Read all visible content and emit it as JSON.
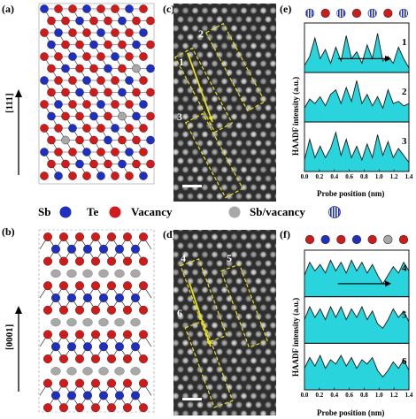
{
  "panels": {
    "a": {
      "label": "(a)",
      "direction": "[111]"
    },
    "b": {
      "label": "(b)",
      "direction": "[0001]"
    },
    "c": {
      "label": "(c)",
      "lines": [
        "1",
        "2",
        "3"
      ]
    },
    "d": {
      "label": "(d)",
      "lines": [
        "4",
        "5",
        "6"
      ]
    },
    "e": {
      "label": "(e)"
    },
    "f": {
      "label": "(f)"
    }
  },
  "legend": {
    "sb": "Sb",
    "te": "Te",
    "vacancy": "Vacancy",
    "sb_vacancy": "Sb/vacancy"
  },
  "colors": {
    "sb": "#1f2fbf",
    "te": "#d11a1a",
    "vacancy": "#a8a8a8",
    "profile_fill": "#2ad4dc",
    "dashed_box": "#e8e020",
    "arrow": "#e8e020"
  },
  "chart_data": [
    {
      "type": "area",
      "panel": "e",
      "ylabel": "HAADF intensity (a.u.)",
      "xlabel": "Probe position (nm)",
      "xlim": [
        0.0,
        1.4
      ],
      "x_ticks": [
        "0.0",
        "0.2",
        "0.4",
        "0.6",
        "0.8",
        "1.0",
        "1.2",
        "1.4"
      ],
      "atom_markers": [
        "sb_vacancy",
        "te",
        "sb_vacancy",
        "te",
        "sb_vacancy",
        "te",
        "sb_vacancy"
      ],
      "series": [
        {
          "name": "1",
          "x": [
            0.0,
            0.07,
            0.14,
            0.21,
            0.28,
            0.35,
            0.42,
            0.49,
            0.56,
            0.63,
            0.7,
            0.77,
            0.84,
            0.91,
            0.98,
            1.05,
            1.12,
            1.19,
            1.26,
            1.33,
            1.4
          ],
          "values": [
            0.15,
            0.35,
            0.75,
            0.3,
            0.5,
            0.2,
            0.55,
            0.25,
            0.8,
            0.3,
            0.45,
            0.2,
            0.6,
            0.3,
            0.85,
            0.25,
            0.35,
            0.2,
            0.55,
            0.3,
            0.1
          ]
        },
        {
          "name": "2",
          "x": [
            0.0,
            0.07,
            0.14,
            0.21,
            0.28,
            0.35,
            0.42,
            0.49,
            0.56,
            0.63,
            0.7,
            0.77,
            0.84,
            0.91,
            0.98,
            1.05,
            1.12,
            1.19,
            1.26,
            1.33,
            1.4
          ],
          "values": [
            0.3,
            0.5,
            0.4,
            0.55,
            0.35,
            0.6,
            0.7,
            0.4,
            0.75,
            0.45,
            0.9,
            0.4,
            0.6,
            0.35,
            0.55,
            0.3,
            0.7,
            0.4,
            0.45,
            0.35,
            0.4
          ]
        },
        {
          "name": "3",
          "x": [
            0.0,
            0.07,
            0.14,
            0.21,
            0.28,
            0.35,
            0.42,
            0.49,
            0.56,
            0.63,
            0.7,
            0.77,
            0.84,
            0.91,
            0.98,
            1.05,
            1.12,
            1.19,
            1.26,
            1.33,
            1.4
          ],
          "values": [
            0.25,
            0.7,
            0.3,
            0.55,
            0.3,
            0.5,
            0.85,
            0.35,
            0.7,
            0.3,
            0.55,
            0.25,
            0.6,
            0.3,
            0.8,
            0.35,
            0.65,
            0.3,
            0.5,
            0.35,
            0.2
          ]
        }
      ]
    },
    {
      "type": "area",
      "panel": "f",
      "ylabel": "HAADF intensity (a.u.)",
      "xlabel": "Probe position (nm)",
      "xlim": [
        0.0,
        1.4
      ],
      "x_ticks": [
        "0.0",
        "0.2",
        "0.4",
        "0.6",
        "0.8",
        "1.0",
        "1.2",
        "1.4"
      ],
      "atom_markers": [
        "te",
        "sb",
        "te",
        "sb",
        "te",
        "vacancy",
        "te"
      ],
      "series": [
        {
          "name": "4",
          "x": [
            0.0,
            0.07,
            0.14,
            0.21,
            0.28,
            0.35,
            0.42,
            0.49,
            0.56,
            0.63,
            0.7,
            0.77,
            0.84,
            0.91,
            0.98,
            1.05,
            1.12,
            1.19,
            1.26,
            1.33,
            1.4
          ],
          "values": [
            0.5,
            0.8,
            0.6,
            0.75,
            0.55,
            0.85,
            0.6,
            0.8,
            0.55,
            0.85,
            0.6,
            0.8,
            0.55,
            0.75,
            0.5,
            0.3,
            0.5,
            0.7,
            0.55,
            0.8,
            0.6
          ]
        },
        {
          "name": "5",
          "x": [
            0.0,
            0.07,
            0.14,
            0.21,
            0.28,
            0.35,
            0.42,
            0.49,
            0.56,
            0.63,
            0.7,
            0.77,
            0.84,
            0.91,
            0.98,
            1.05,
            1.12,
            1.19,
            1.26,
            1.33,
            1.4
          ],
          "values": [
            0.55,
            0.85,
            0.6,
            0.8,
            0.55,
            0.85,
            0.6,
            0.85,
            0.55,
            0.8,
            0.6,
            0.85,
            0.55,
            0.75,
            0.45,
            0.35,
            0.55,
            0.8,
            0.6,
            0.75,
            0.5
          ]
        },
        {
          "name": "6",
          "x": [
            0.0,
            0.07,
            0.14,
            0.21,
            0.28,
            0.35,
            0.42,
            0.49,
            0.56,
            0.63,
            0.7,
            0.77,
            0.84,
            0.91,
            0.98,
            1.05,
            1.12,
            1.19,
            1.26,
            1.33,
            1.4
          ],
          "values": [
            0.5,
            0.75,
            0.55,
            0.8,
            0.5,
            0.7,
            0.6,
            0.8,
            0.55,
            0.75,
            0.5,
            0.7,
            0.6,
            0.75,
            0.45,
            0.3,
            0.45,
            0.65,
            0.5,
            0.7,
            0.45
          ]
        }
      ]
    }
  ]
}
